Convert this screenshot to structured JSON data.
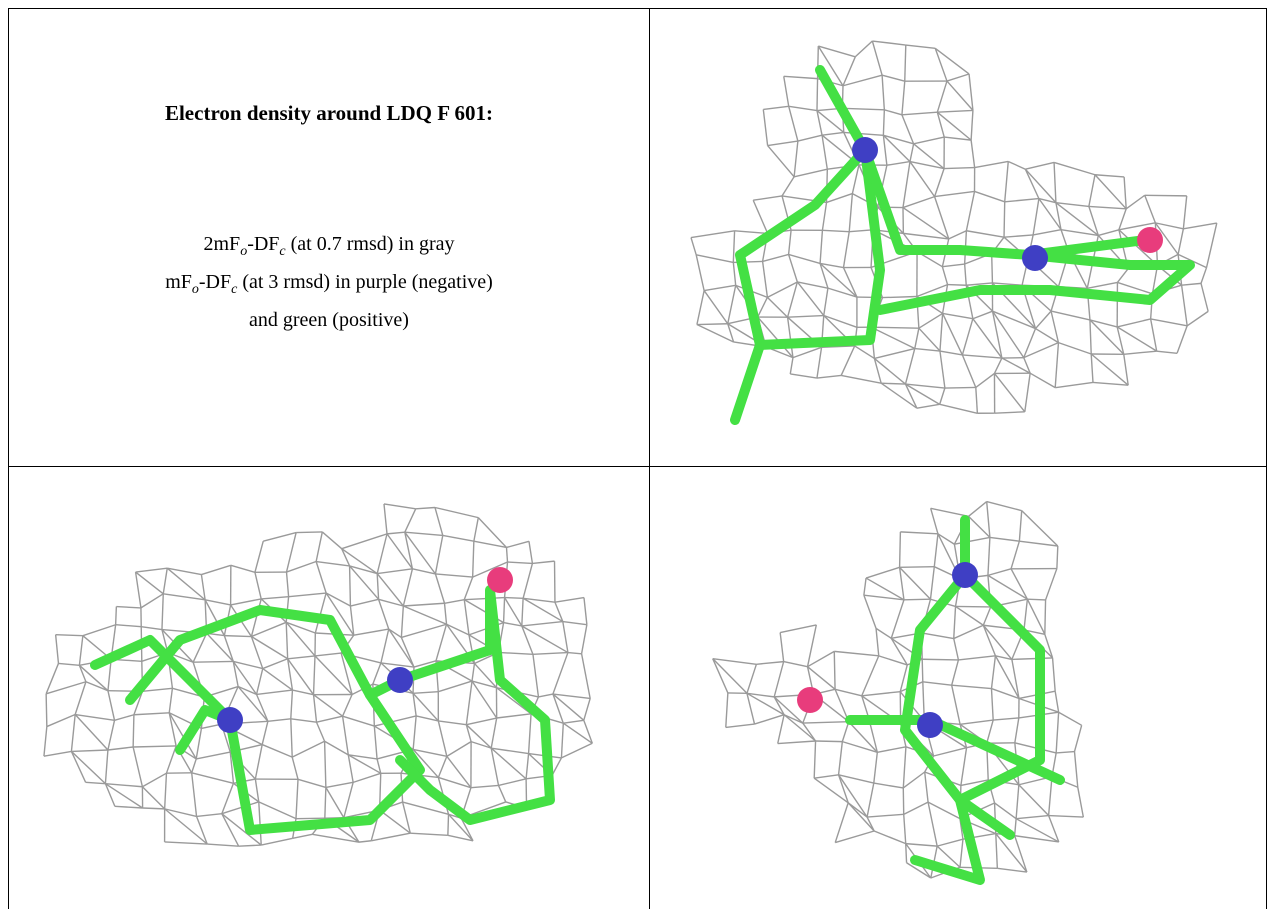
{
  "caption": {
    "title": "Electron density around LDQ F 601:",
    "lines": [
      [
        "2mF",
        "o",
        "-DF",
        "c",
        " (at 0.7 rmsd) in gray"
      ],
      [
        "mF",
        "o",
        "-DF",
        "c",
        " (at 3 rmsd) in purple (negative)"
      ],
      [
        "and green (positive)"
      ]
    ]
  }
}
